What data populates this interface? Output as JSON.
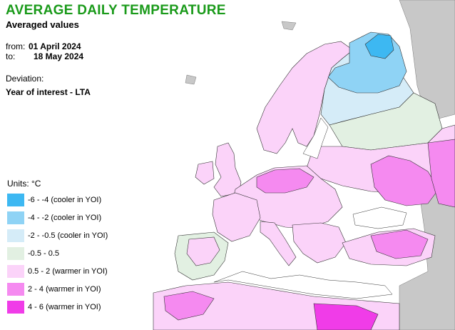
{
  "header": {
    "title": "AVERAGE DAILY TEMPERATURE",
    "subtitle": "Averaged values",
    "from_label": "from:",
    "from_date": "01 April 2024",
    "to_label": "to:",
    "to_date": "18 May 2024",
    "deviation_label": "Deviation:",
    "deviation_value": "Year of interest - LTA"
  },
  "legend": {
    "units": "Units: °C",
    "items": [
      {
        "label": "-6 - -4 (cooler in YOI)",
        "color": "#3db8f2"
      },
      {
        "label": "-4 - -2 (cooler in YOI)",
        "color": "#8fd3f5"
      },
      {
        "label": "-2 - -0.5 (cooler in YOI)",
        "color": "#d5ecf8"
      },
      {
        "label": "-0.5 - 0.5",
        "color": "#e2f0e2"
      },
      {
        "label": "0.5 - 2 (warmer in YOI)",
        "color": "#fbd3f9"
      },
      {
        "label": "2 - 4 (warmer in YOI)",
        "color": "#f58af0"
      },
      {
        "label": "4 - 6 (warmer in YOI)",
        "color": "#f03ce8"
      }
    ]
  },
  "map": {
    "sea_color": "#ffffff",
    "outside_color": "#c8c8c8",
    "border_color": "#333333"
  }
}
